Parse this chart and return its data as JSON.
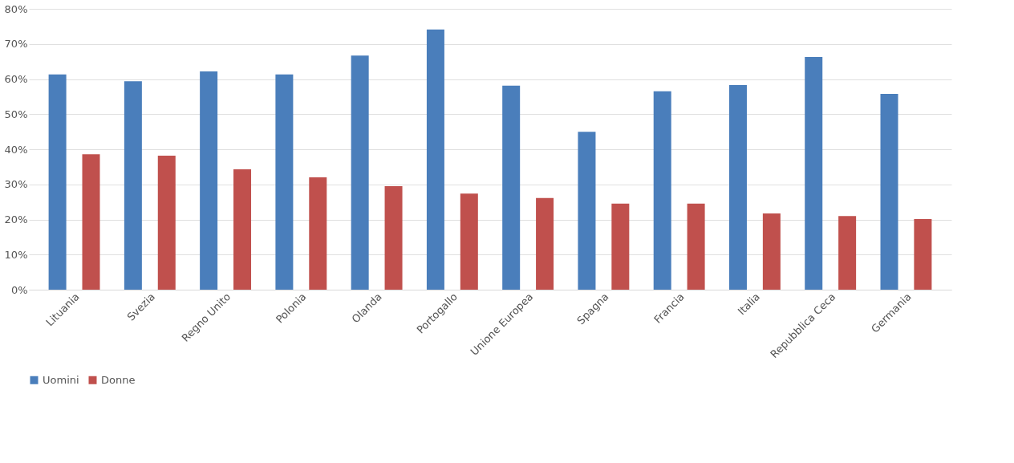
{
  "chart_data": {
    "type": "bar",
    "categories": [
      "Lituania",
      "Svezia",
      "Regno Unito",
      "Polonia",
      "Olanda",
      "Portogallo",
      "Unione Europea",
      "Spagna",
      "Francia",
      "Italia",
      "Repubblica Ceca",
      "Germania"
    ],
    "series": [
      {
        "name": "Uomini",
        "color": "#4a7ebb",
        "values": [
          61.3,
          59.4,
          62.2,
          61.3,
          66.7,
          74.1,
          58.1,
          45.0,
          56.5,
          58.3,
          66.3,
          55.8
        ]
      },
      {
        "name": "Donne",
        "color": "#c0504d",
        "values": [
          38.6,
          38.2,
          34.3,
          32.0,
          29.5,
          27.4,
          26.1,
          24.5,
          24.5,
          21.7,
          21.0,
          20.1
        ]
      }
    ],
    "ylim": [
      0,
      80
    ],
    "yticks": [
      {
        "value": 0,
        "label": "0%"
      },
      {
        "value": 10,
        "label": "10%"
      },
      {
        "value": 20,
        "label": "20%"
      },
      {
        "value": 30,
        "label": "30%"
      },
      {
        "value": 40,
        "label": "40%"
      },
      {
        "value": 50,
        "label": "50%"
      },
      {
        "value": 60,
        "label": "60%"
      },
      {
        "value": 70,
        "label": "70%"
      },
      {
        "value": 80,
        "label": "80%"
      }
    ],
    "grid": "y",
    "legend": "bottom"
  }
}
